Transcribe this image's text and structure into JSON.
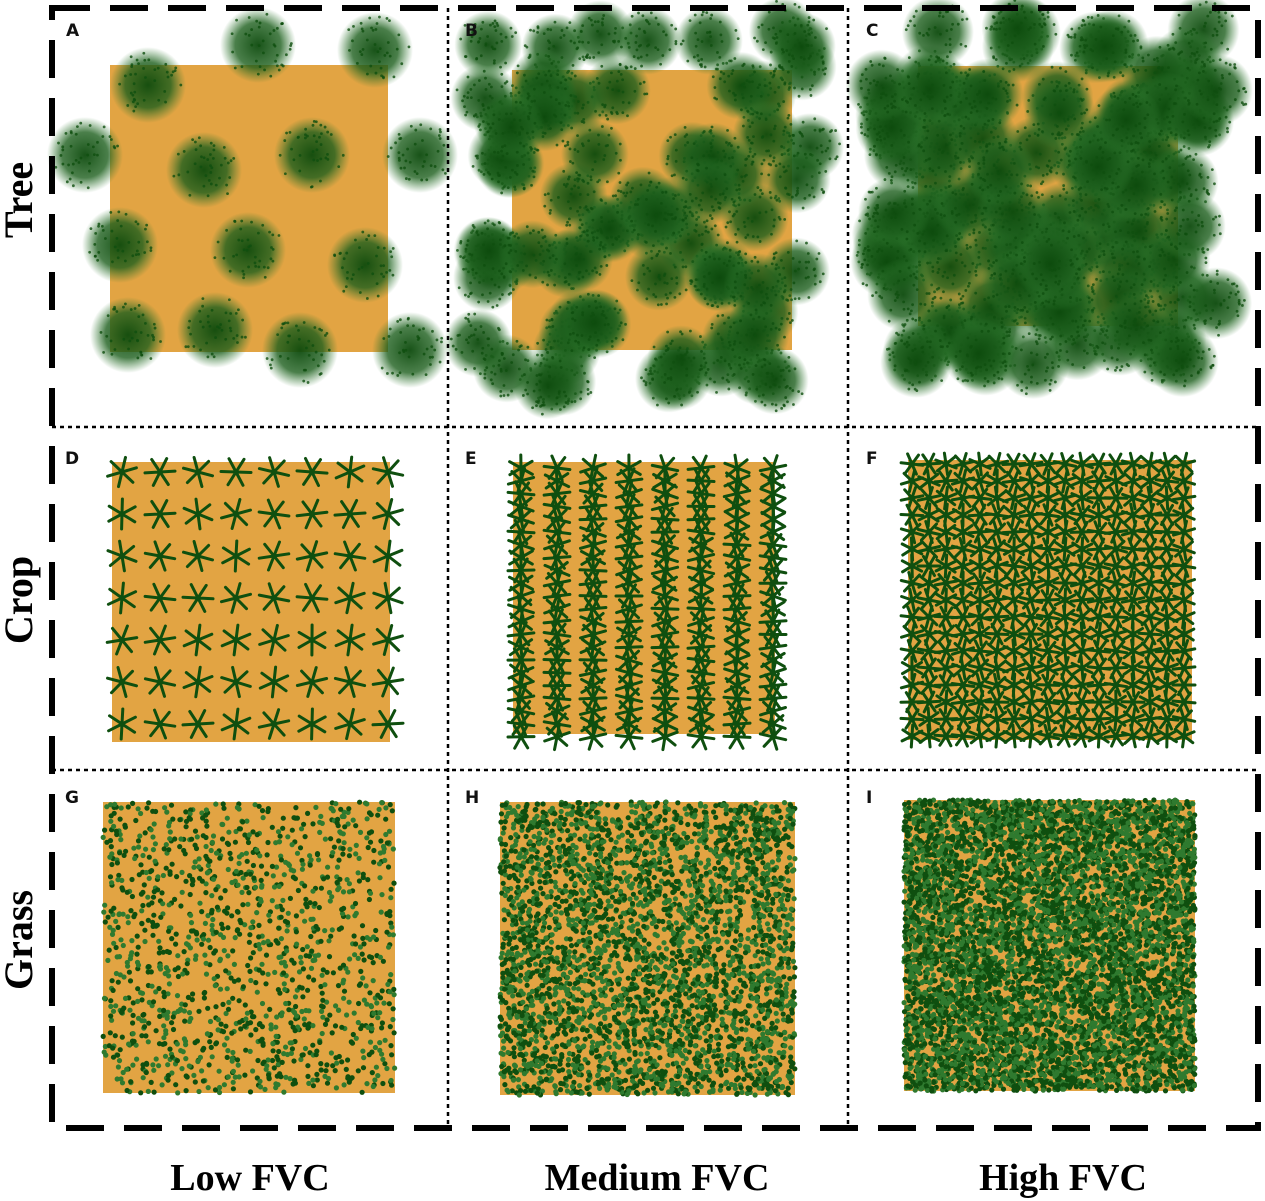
{
  "row_labels": [
    "Tree",
    "Crop",
    "Grass"
  ],
  "column_labels": [
    "Low FVC",
    "Medium FVC",
    "High FVC"
  ],
  "panels": [
    {
      "letter": "A",
      "type": "tree",
      "fvc": "low"
    },
    {
      "letter": "B",
      "type": "tree",
      "fvc": "medium"
    },
    {
      "letter": "C",
      "type": "tree",
      "fvc": "high"
    },
    {
      "letter": "D",
      "type": "crop",
      "fvc": "low"
    },
    {
      "letter": "E",
      "type": "crop",
      "fvc": "medium"
    },
    {
      "letter": "F",
      "type": "crop",
      "fvc": "high"
    },
    {
      "letter": "G",
      "type": "grass",
      "fvc": "low"
    },
    {
      "letter": "H",
      "type": "grass",
      "fvc": "medium"
    },
    {
      "letter": "I",
      "type": "grass",
      "fvc": "high"
    }
  ],
  "colors": {
    "soil": "#e2a443",
    "vegetation_dark": "#0f4f0f",
    "vegetation_light": "#2f7a2f",
    "frame": "#000000"
  }
}
